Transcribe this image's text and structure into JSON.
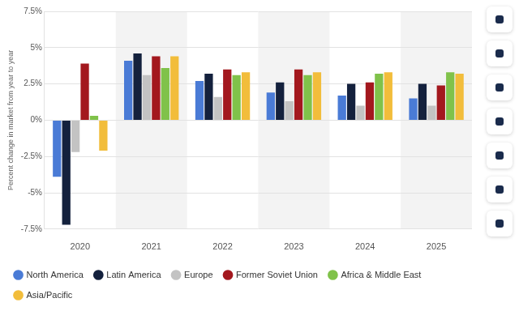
{
  "chart_data": {
    "type": "bar",
    "y_label": "Percent change in market from year to year",
    "categories": [
      "2020",
      "2021",
      "2022",
      "2023",
      "2024",
      "2025"
    ],
    "series": [
      {
        "name": "North America",
        "color": "#4a7bd6",
        "values": [
          -3.9,
          4.1,
          2.7,
          1.9,
          1.7,
          1.5
        ]
      },
      {
        "name": "Latin America",
        "color": "#14213d",
        "values": [
          -7.2,
          4.6,
          3.2,
          2.6,
          2.5,
          2.5
        ]
      },
      {
        "name": "Europe",
        "color": "#c3c3c3",
        "values": [
          -2.2,
          3.1,
          1.6,
          1.3,
          1.0,
          1.0
        ]
      },
      {
        "name": "Former Soviet Union",
        "color": "#a3181e",
        "values": [
          3.9,
          4.4,
          3.5,
          3.5,
          2.6,
          2.4
        ]
      },
      {
        "name": "Africa & Middle East",
        "color": "#80c24a",
        "values": [
          0.3,
          3.6,
          3.1,
          3.1,
          3.2,
          3.3
        ]
      },
      {
        "name": "Asia/Pacific",
        "color": "#f2bd3b",
        "values": [
          -2.1,
          4.4,
          3.3,
          3.3,
          3.3,
          3.2
        ]
      }
    ],
    "ylim": [
      -7.5,
      7.5
    ],
    "yticks": [
      {
        "value": -7.5,
        "label": "-7.5%"
      },
      {
        "value": -5,
        "label": "-5%"
      },
      {
        "value": -2.5,
        "label": "-2.5%"
      },
      {
        "value": 0,
        "label": "0%"
      },
      {
        "value": 2.5,
        "label": "2.5%"
      },
      {
        "value": 5,
        "label": "5%"
      },
      {
        "value": 7.5,
        "label": "7.5%"
      }
    ],
    "grid": true,
    "legend": "bottom-left"
  }
}
